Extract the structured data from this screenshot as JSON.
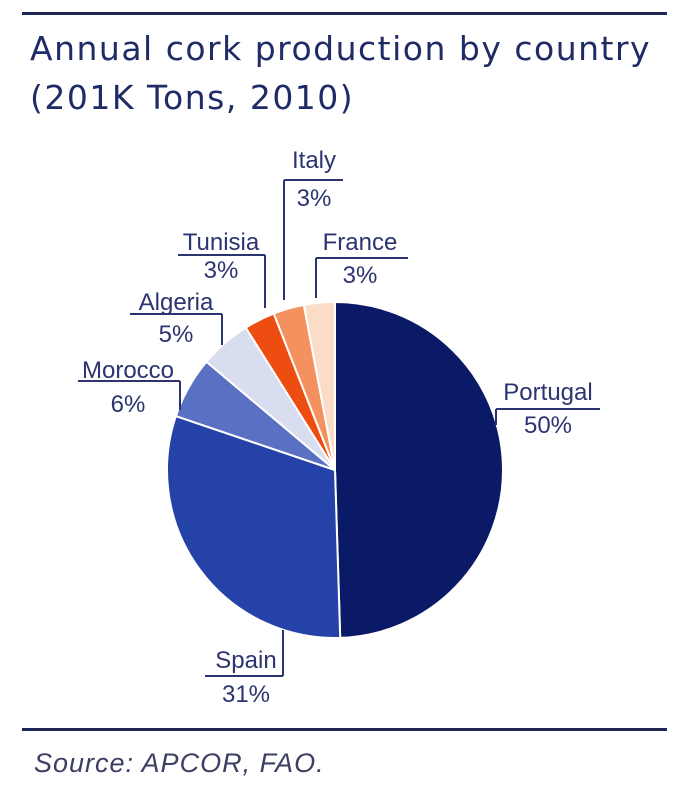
{
  "chart_data": {
    "type": "pie",
    "title": "Annual cork production by country",
    "subtitle": "(201K Tons, 2010)",
    "start_angle_deg": 0,
    "direction": "clockwise",
    "slices": [
      {
        "label": "Portugal",
        "value": 50,
        "value_label": "50%",
        "color": "#0b1a66"
      },
      {
        "label": "Spain",
        "value": 31,
        "value_label": "31%",
        "color": "#2442a8"
      },
      {
        "label": "Morocco",
        "value": 6,
        "value_label": "6%",
        "color": "#5a70c2"
      },
      {
        "label": "Algeria",
        "value": 5,
        "value_label": "5%",
        "color": "#d9ddf0"
      },
      {
        "label": "Tunisia",
        "value": 3,
        "value_label": "3%",
        "color": "#ee4d12"
      },
      {
        "label": "Italy",
        "value": 3,
        "value_label": "3%",
        "color": "#f5915e"
      },
      {
        "label": "France",
        "value": 3,
        "value_label": "3%",
        "color": "#fbdcc7"
      }
    ]
  },
  "source": "Source: APCOR, FAO."
}
